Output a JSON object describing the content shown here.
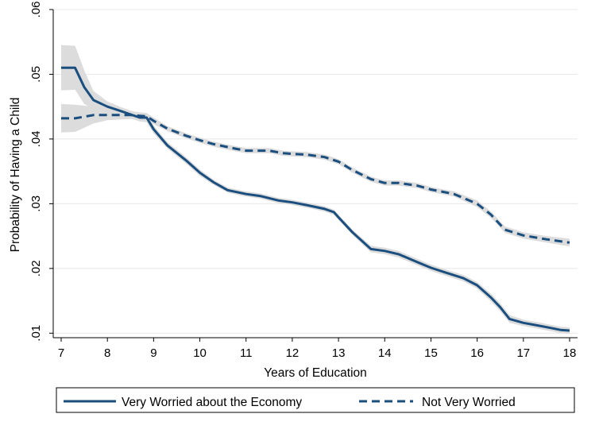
{
  "chart_data": {
    "type": "line",
    "xlabel": "Years of Education",
    "ylabel": "Probability of Having a Child",
    "xlim": [
      7,
      18
    ],
    "ylim": [
      0.0093,
      0.06
    ],
    "xticks": [
      7,
      8,
      9,
      10,
      11,
      12,
      13,
      14,
      15,
      16,
      17,
      18
    ],
    "xtick_labels": [
      "7",
      "8",
      "9",
      "10",
      "11",
      "12",
      "13",
      "14",
      "15",
      "16",
      "17",
      "18"
    ],
    "yticks": [
      0.01,
      0.02,
      0.03,
      0.04,
      0.05,
      0.06
    ],
    "ytick_labels": [
      ".01",
      ".02",
      ".03",
      ".04",
      ".05",
      ".06"
    ],
    "grid": "horizontal",
    "legend_position": "bottom",
    "colors": {
      "line": "#1a4e7e",
      "band": "#dcdcdc",
      "axis": "#000000"
    },
    "series": [
      {
        "name": "Very Worried about the Economy",
        "style": "solid",
        "x": [
          7,
          7.3,
          7.5,
          7.7,
          8,
          8.3,
          8.7,
          8.85,
          9,
          9.3,
          9.7,
          10,
          10.3,
          10.6,
          11,
          11.3,
          11.7,
          12,
          12.3,
          12.7,
          12.9,
          13,
          13.3,
          13.7,
          14,
          14.3,
          14.7,
          15,
          15.3,
          15.7,
          16,
          16.3,
          16.5,
          16.7,
          17,
          17.3,
          17.6,
          17.8,
          18
        ],
        "y": [
          0.051,
          0.051,
          0.048,
          0.046,
          0.045,
          0.0443,
          0.0433,
          0.0433,
          0.0415,
          0.039,
          0.0367,
          0.0348,
          0.0333,
          0.0321,
          0.0315,
          0.0312,
          0.0305,
          0.0302,
          0.0298,
          0.0292,
          0.0287,
          0.0279,
          0.0256,
          0.023,
          0.0227,
          0.0222,
          0.021,
          0.0201,
          0.0194,
          0.0185,
          0.0174,
          0.0155,
          0.014,
          0.0122,
          0.0116,
          0.0112,
          0.0108,
          0.0105,
          0.0104
        ],
        "band_halfwidth": [
          0.0035,
          0.0034,
          0.0026,
          0.0014,
          0.0008,
          0.0006,
          0.0006,
          0.0007,
          0.0006,
          0.0005,
          0.0005,
          0.0005,
          0.0004,
          0.0004,
          0.0004,
          0.0004,
          0.0004,
          0.0004,
          0.0004,
          0.0004,
          0.0004,
          0.0004,
          0.0004,
          0.0005,
          0.0005,
          0.0005,
          0.0005,
          0.0005,
          0.0005,
          0.0005,
          0.0005,
          0.0006,
          0.0006,
          0.0006,
          0.0005,
          0.0005,
          0.0005,
          0.0005,
          0.0005
        ]
      },
      {
        "name": "Not Very Worried",
        "style": "dashed",
        "x": [
          7,
          7.3,
          7.7,
          8,
          8.5,
          8.85,
          9,
          9.3,
          9.7,
          10,
          10.3,
          10.7,
          11,
          11.5,
          11.8,
          12,
          12.3,
          12.7,
          13,
          13.3,
          13.7,
          14,
          14.3,
          14.7,
          15,
          15.5,
          16,
          16.3,
          16.6,
          17,
          17.5,
          18
        ],
        "y": [
          0.0432,
          0.0432,
          0.0437,
          0.0437,
          0.0437,
          0.0435,
          0.0428,
          0.0416,
          0.0405,
          0.0398,
          0.0392,
          0.0386,
          0.0382,
          0.0382,
          0.0378,
          0.0377,
          0.0376,
          0.0372,
          0.0365,
          0.0352,
          0.0338,
          0.0332,
          0.0332,
          0.0328,
          0.0322,
          0.0315,
          0.03,
          0.0283,
          0.026,
          0.0251,
          0.0245,
          0.024
        ],
        "band_halfwidth": [
          0.0022,
          0.0021,
          0.0013,
          0.0008,
          0.0006,
          0.0005,
          0.0005,
          0.0004,
          0.0004,
          0.0004,
          0.0004,
          0.0004,
          0.0004,
          0.0004,
          0.0004,
          0.0004,
          0.0004,
          0.0004,
          0.0004,
          0.0004,
          0.0004,
          0.0004,
          0.0004,
          0.0004,
          0.0004,
          0.0004,
          0.0005,
          0.0005,
          0.0005,
          0.0005,
          0.0005,
          0.0006
        ]
      }
    ]
  }
}
